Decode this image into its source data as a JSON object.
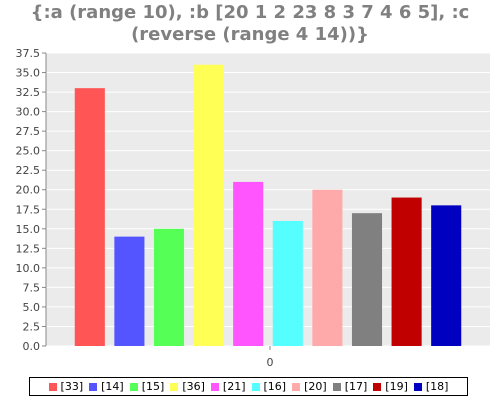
{
  "chart_data": {
    "type": "bar",
    "title": "{:a (range 10), :b [20 1 2 23 8 3 7 4 6 5], :c\n(reverse (range 4 14))}",
    "xlabel": "",
    "ylabel": "",
    "categories": [
      "0"
    ],
    "ylim": [
      0,
      37.5
    ],
    "yticks": [
      "0.0",
      "2.5",
      "5.0",
      "7.5",
      "10.0",
      "12.5",
      "15.0",
      "17.5",
      "20.0",
      "22.5",
      "25.0",
      "27.5",
      "30.0",
      "32.5",
      "35.0",
      "37.5"
    ],
    "grid": true,
    "legend_position": "bottom",
    "series": [
      {
        "name": "[33]",
        "values": [
          33
        ],
        "color": "#ff5555"
      },
      {
        "name": "[14]",
        "values": [
          14
        ],
        "color": "#5555ff"
      },
      {
        "name": "[15]",
        "values": [
          15
        ],
        "color": "#55ff55"
      },
      {
        "name": "[36]",
        "values": [
          36
        ],
        "color": "#ffff55"
      },
      {
        "name": "[21]",
        "values": [
          21
        ],
        "color": "#ff55ff"
      },
      {
        "name": "[16]",
        "values": [
          16
        ],
        "color": "#55ffff"
      },
      {
        "name": "[20]",
        "values": [
          20
        ],
        "color": "#ffaaaa"
      },
      {
        "name": "[17]",
        "values": [
          17
        ],
        "color": "#808080"
      },
      {
        "name": "[19]",
        "values": [
          19
        ],
        "color": "#c00000"
      },
      {
        "name": "[18]",
        "values": [
          18
        ],
        "color": "#0000c0"
      }
    ]
  }
}
